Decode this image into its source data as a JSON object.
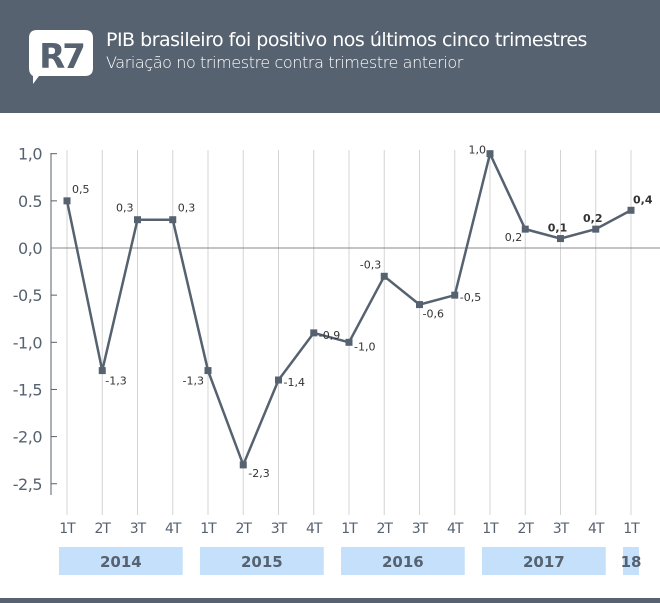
{
  "header": {
    "logo": "R7",
    "title": "PIB brasileiro foi positivo nos últimos cinco trimestres",
    "subtitle": "Variação no trimestre contra trimestre anterior"
  },
  "chart_data": {
    "type": "line",
    "title": "PIB brasileiro foi positivo nos últimos cinco trimestres",
    "subtitle": "Variação no trimestre contra trimestre anterior",
    "categories": [
      "1T",
      "2T",
      "3T",
      "4T",
      "1T",
      "2T",
      "3T",
      "4T",
      "1T",
      "2T",
      "3T",
      "4T",
      "1T",
      "2T",
      "3T",
      "4T",
      "1T"
    ],
    "years": [
      {
        "label": "2014",
        "start": 0,
        "end": 3
      },
      {
        "label": "2015",
        "start": 4,
        "end": 7
      },
      {
        "label": "2016",
        "start": 8,
        "end": 11
      },
      {
        "label": "2017",
        "start": 12,
        "end": 15
      },
      {
        "label": "18",
        "start": 16,
        "end": 16
      }
    ],
    "series": [
      {
        "name": "PIB",
        "values": [
          0.5,
          -1.3,
          0.3,
          0.3,
          -1.3,
          -2.3,
          -1.4,
          -0.9,
          -1.0,
          -0.3,
          -0.6,
          -0.5,
          1.0,
          0.2,
          0.1,
          0.2,
          0.4
        ]
      }
    ],
    "data_labels": [
      "0,5",
      "-1,3",
      "0,3",
      "0,3",
      "-1,3",
      "-2,3",
      "-1,4",
      "-0,9",
      "-1,0",
      "-0,3",
      "-0,6",
      "-0,5",
      "1,0",
      "0,2",
      "0,1",
      "0,2",
      "0,4"
    ],
    "yticks": [
      "1,0",
      "0.5",
      "0,0",
      "-0,5",
      "-1,0",
      "-1,5",
      "-2,0",
      "-2,5"
    ],
    "ytick_values": [
      1.0,
      0.5,
      0,
      -0.5,
      -1.0,
      -1.5,
      -2.0,
      -2.5
    ],
    "ylim": [
      -2.5,
      1.0
    ],
    "grid": "vertical",
    "colors": {
      "line": "#566270",
      "band": "#c5e0fb",
      "text": "#566270"
    }
  }
}
